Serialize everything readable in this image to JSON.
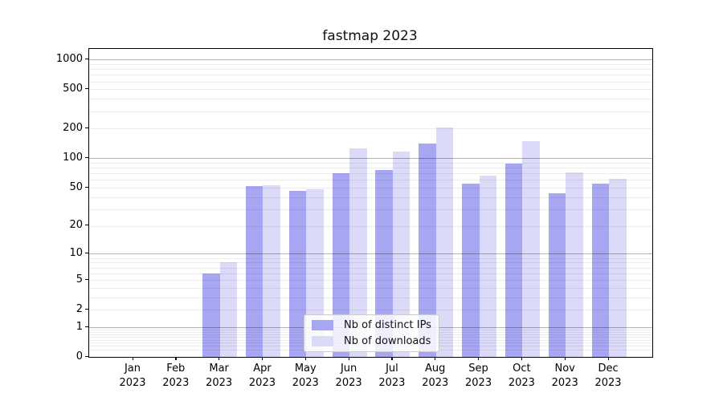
{
  "chart_data": {
    "type": "bar",
    "title": "fastmap 2023",
    "categories": [
      "Jan",
      "Feb",
      "Mar",
      "Apr",
      "May",
      "Jun",
      "Jul",
      "Aug",
      "Sep",
      "Oct",
      "Nov",
      "Dec"
    ],
    "category_year": "2023",
    "series": [
      {
        "name": "Nb of distinct IPs",
        "color": "#a6a6f2",
        "values": [
          0,
          0,
          6,
          52,
          46,
          70,
          76,
          142,
          55,
          88,
          44,
          55
        ]
      },
      {
        "name": "Nb of downloads",
        "color": "#dbdbf9",
        "values": [
          0,
          0,
          8,
          53,
          48,
          125,
          118,
          205,
          67,
          150,
          72,
          62
        ]
      }
    ],
    "yscale": "log1p",
    "y_ticks": [
      0,
      1,
      2,
      5,
      10,
      20,
      50,
      100,
      200,
      500,
      1000
    ],
    "y_minor_gridlines": [
      0.2,
      0.3,
      0.4,
      0.5,
      0.6,
      0.7,
      0.8,
      0.9,
      2,
      3,
      4,
      5,
      6,
      7,
      8,
      9,
      20,
      30,
      40,
      50,
      60,
      70,
      80,
      90,
      200,
      300,
      400,
      500,
      600,
      700,
      800,
      900
    ],
    "y_major_gridlines": [
      1,
      10,
      100,
      1000
    ],
    "ylim": [
      0,
      1280
    ],
    "grid": true,
    "legend_position": "lower center"
  }
}
